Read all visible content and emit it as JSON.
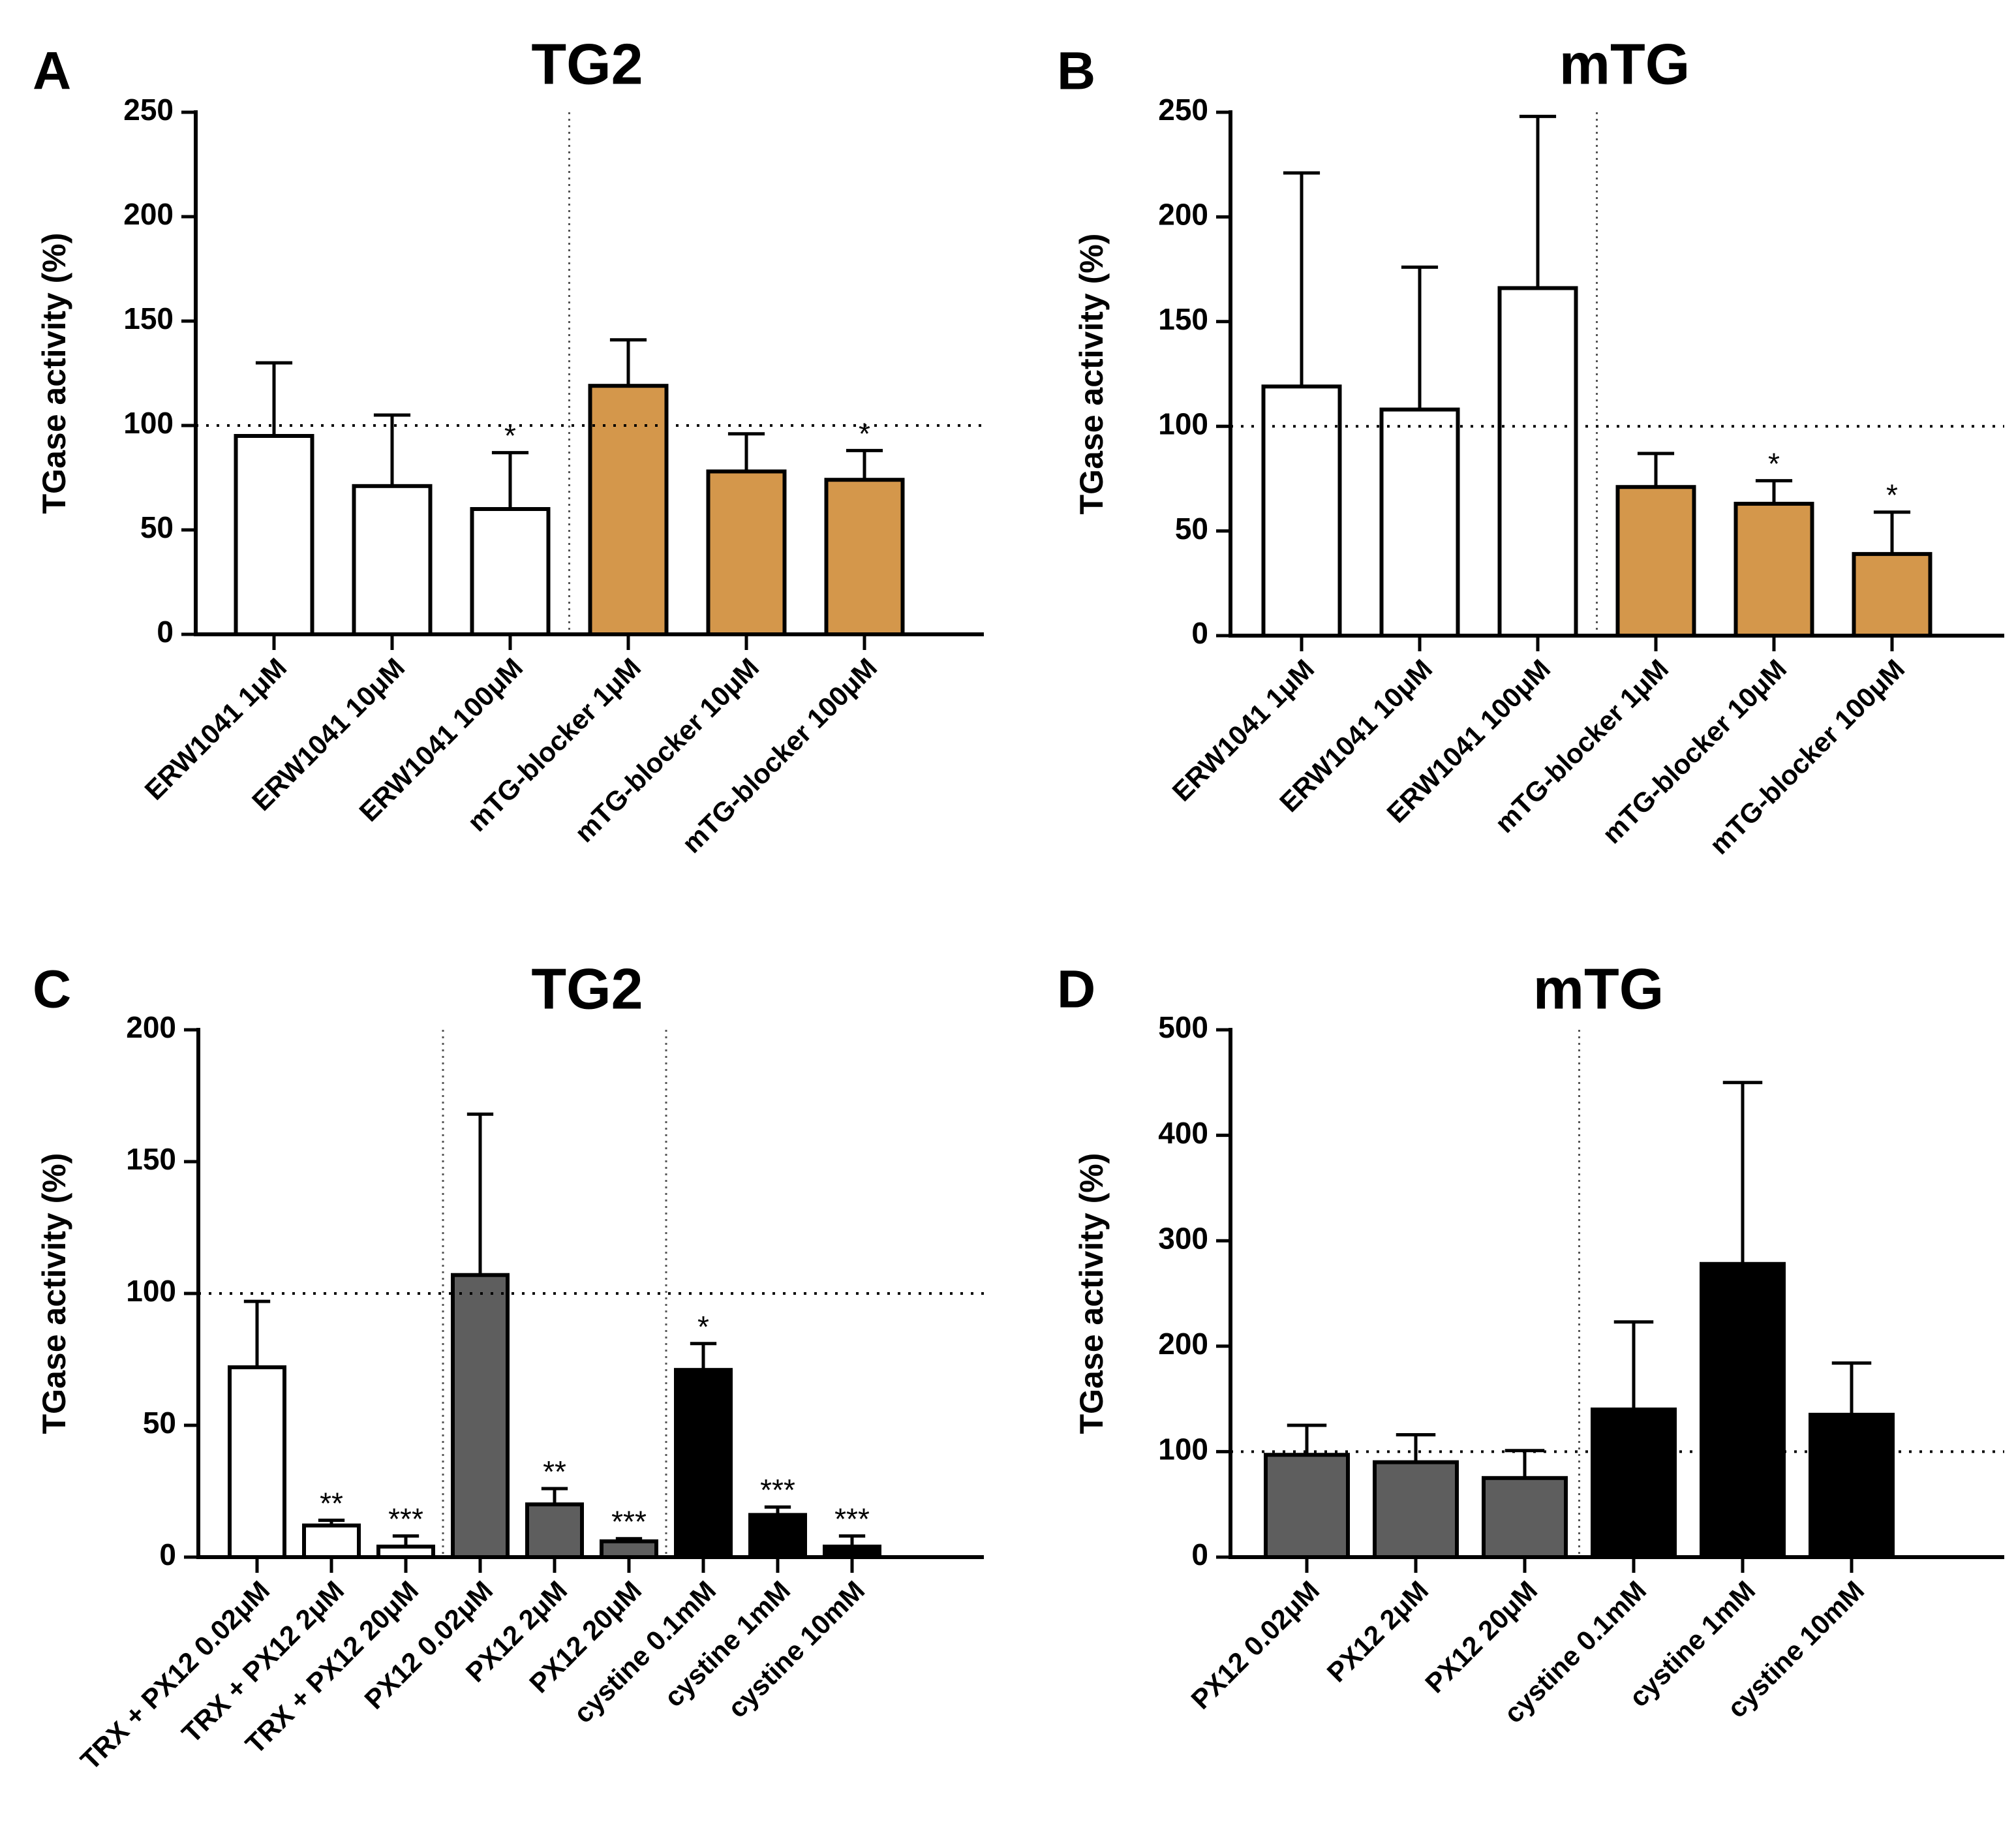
{
  "colors": {
    "white": "#ffffff",
    "orange": "#d4974b",
    "gray": "#5e5e5e",
    "black": "#000000"
  },
  "chart_data": [
    {
      "panel": "A",
      "type": "bar",
      "title": "TG2",
      "ylabel": "TGase activity (%)",
      "xlabel": "",
      "ylim": [
        0,
        250
      ],
      "yticks": [
        0,
        50,
        100,
        150,
        200,
        250
      ],
      "reference_line": 100,
      "categories": [
        "ERW1041 1μM",
        "ERW1041 10μM",
        "ERW1041 100μM",
        "mTG-blocker 1μM",
        "mTG-blocker 10μM",
        "mTG-blocker 100μM"
      ],
      "values": [
        95,
        71,
        60,
        119,
        78,
        74
      ],
      "errors": [
        35,
        34,
        27,
        22,
        18,
        14
      ],
      "significance": [
        "",
        "",
        "*",
        "",
        "",
        "*"
      ],
      "fills": [
        "white",
        "white",
        "white",
        "orange",
        "orange",
        "orange"
      ],
      "separators_after": [
        2
      ]
    },
    {
      "panel": "B",
      "type": "bar",
      "title": "mTG",
      "ylabel": "TGase activity (%)",
      "xlabel": "",
      "ylim": [
        0,
        250
      ],
      "yticks": [
        0,
        50,
        100,
        150,
        200,
        250
      ],
      "reference_line": 100,
      "categories": [
        "ERW1041 1μM",
        "ERW1041 10μM",
        "ERW1041 100μM",
        "mTG-blocker 1μM",
        "mTG-blocker 10μM",
        "mTG-blocker 100μM"
      ],
      "values": [
        119,
        108,
        166,
        71,
        63,
        39
      ],
      "errors": [
        102,
        68,
        82,
        16,
        11,
        20
      ],
      "significance": [
        "",
        "",
        "",
        "",
        "*",
        "*"
      ],
      "fills": [
        "white",
        "white",
        "white",
        "orange",
        "orange",
        "orange"
      ],
      "separators_after": [
        2
      ]
    },
    {
      "panel": "C",
      "type": "bar",
      "title": "TG2",
      "ylabel": "TGase activity (%)",
      "xlabel": "",
      "ylim": [
        0,
        200
      ],
      "yticks": [
        0,
        50,
        100,
        150,
        200
      ],
      "reference_line": 100,
      "categories": [
        "TRX + PX12 0.02μM",
        "TRX + PX12 2μM",
        "TRX + PX12 20μM",
        "PX12 0.02μM",
        "PX12 2μM",
        "PX12 20μM",
        "cystine 0.1mM",
        "cystine 1mM",
        "cystine 10mM"
      ],
      "values": [
        72,
        12,
        4,
        107,
        20,
        6,
        71,
        16,
        4
      ],
      "errors": [
        25,
        2,
        4,
        61,
        6,
        1,
        10,
        3,
        4
      ],
      "significance": [
        "",
        "**",
        "***",
        "",
        "**",
        "***",
        "*",
        "***",
        "***"
      ],
      "fills": [
        "white",
        "white",
        "white",
        "gray",
        "gray",
        "gray",
        "black",
        "black",
        "black"
      ],
      "separators_after": [
        2,
        5
      ]
    },
    {
      "panel": "D",
      "type": "bar",
      "title": "mTG",
      "ylabel": "TGase activity (%)",
      "xlabel": "",
      "ylim": [
        0,
        500
      ],
      "yticks": [
        0,
        100,
        200,
        300,
        400,
        500
      ],
      "reference_line": 100,
      "categories": [
        "PX12 0.02μM",
        "PX12 2μM",
        "PX12 20μM",
        "cystine 0.1mM",
        "cystine 1mM",
        "cystine 10mM"
      ],
      "values": [
        97,
        90,
        75,
        140,
        278,
        135
      ],
      "errors": [
        28,
        26,
        26,
        83,
        172,
        49
      ],
      "significance": [
        "",
        "",
        "",
        "",
        "",
        ""
      ],
      "fills": [
        "gray",
        "gray",
        "gray",
        "black",
        "black",
        "black"
      ],
      "separators_after": [
        2
      ]
    }
  ]
}
